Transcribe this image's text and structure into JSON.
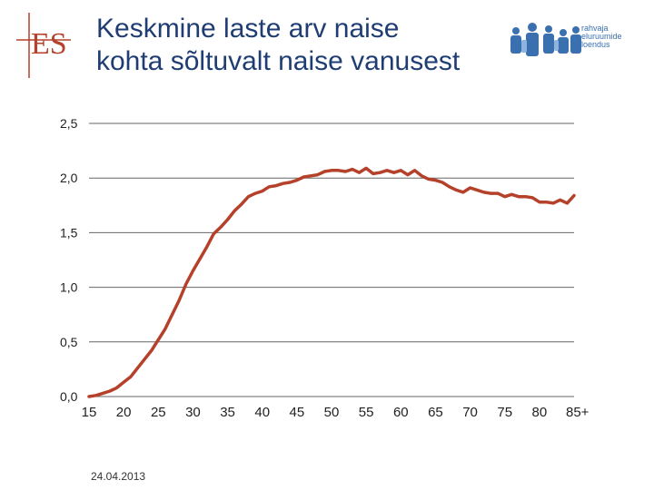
{
  "slide": {
    "title_line1": "Keskmine laste arv naise",
    "title_line2": "kohta sõltuvalt naise vanusest",
    "logo_text": "ES",
    "partner_logo_lines": [
      "rahvaja",
      "eluruumide",
      "loendus"
    ],
    "date": "24.04.2013"
  },
  "colors": {
    "title": "#1f3d73",
    "line": "#b5412a",
    "grid": "#666666",
    "logo": "#b5412a"
  },
  "chart_data": {
    "type": "line",
    "title": "",
    "xlabel": "",
    "ylabel": "",
    "x_tick_labels": [
      "15",
      "20",
      "25",
      "30",
      "35",
      "40",
      "45",
      "50",
      "55",
      "60",
      "65",
      "70",
      "75",
      "80",
      "85+"
    ],
    "y_tick_labels": [
      "0,0",
      "0,5",
      "1,0",
      "1,5",
      "2,0",
      "2,5"
    ],
    "x_ticks": [
      15,
      20,
      25,
      30,
      35,
      40,
      45,
      50,
      55,
      60,
      65,
      70,
      75,
      80,
      85
    ],
    "y_ticks": [
      0,
      0.5,
      1.0,
      1.5,
      2.0,
      2.5
    ],
    "xlim": [
      15,
      85
    ],
    "ylim": [
      0,
      2.5
    ],
    "grid": true,
    "legend": false,
    "series": [
      {
        "color": "#b5412a",
        "x": [
          15,
          16,
          17,
          18,
          19,
          20,
          21,
          22,
          23,
          24,
          25,
          26,
          27,
          28,
          29,
          30,
          31,
          32,
          33,
          34,
          35,
          36,
          37,
          38,
          39,
          40,
          41,
          42,
          43,
          44,
          45,
          46,
          47,
          48,
          49,
          50,
          51,
          52,
          53,
          54,
          55,
          56,
          57,
          58,
          59,
          60,
          61,
          62,
          63,
          64,
          65,
          66,
          67,
          68,
          69,
          70,
          71,
          72,
          73,
          74,
          75,
          76,
          77,
          78,
          79,
          80,
          81,
          82,
          83,
          84,
          85
        ],
        "y": [
          0.0,
          0.01,
          0.03,
          0.05,
          0.08,
          0.13,
          0.18,
          0.26,
          0.34,
          0.42,
          0.52,
          0.62,
          0.75,
          0.88,
          1.03,
          1.15,
          1.26,
          1.37,
          1.49,
          1.55,
          1.62,
          1.7,
          1.76,
          1.83,
          1.86,
          1.88,
          1.92,
          1.93,
          1.95,
          1.96,
          1.98,
          2.01,
          2.02,
          2.03,
          2.06,
          2.07,
          2.07,
          2.06,
          2.08,
          2.05,
          2.09,
          2.04,
          2.05,
          2.07,
          2.05,
          2.07,
          2.03,
          2.07,
          2.02,
          1.99,
          1.98,
          1.96,
          1.92,
          1.89,
          1.87,
          1.91,
          1.89,
          1.87,
          1.86,
          1.86,
          1.83,
          1.85,
          1.83,
          1.83,
          1.82,
          1.78,
          1.78,
          1.77,
          1.8,
          1.77,
          1.84
        ]
      }
    ]
  }
}
